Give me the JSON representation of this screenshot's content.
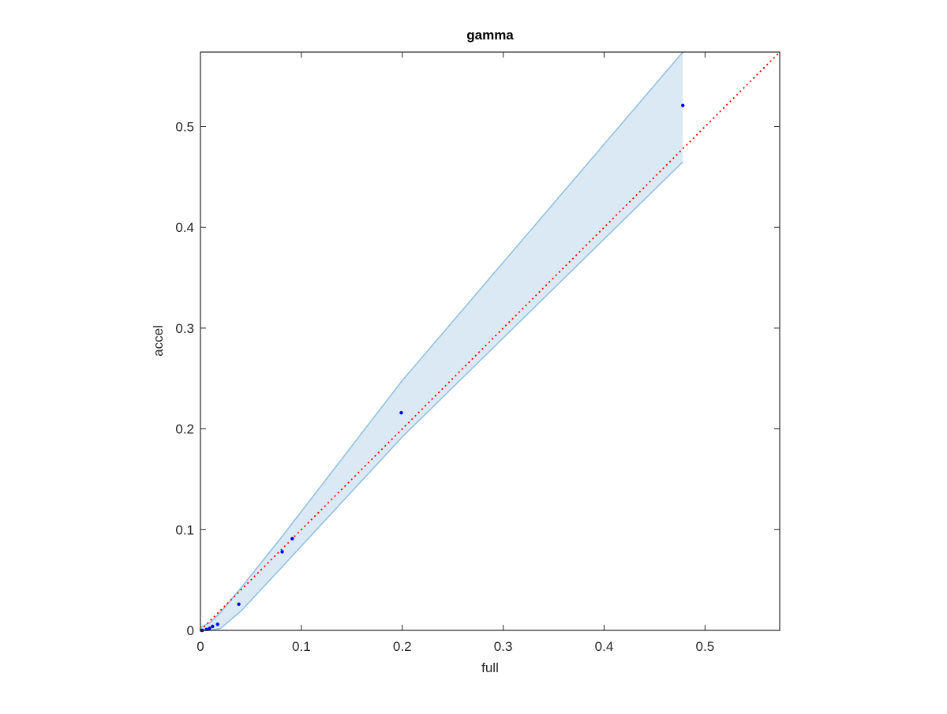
{
  "chart_data": {
    "type": "scatter",
    "title": "gamma",
    "xlabel": "full",
    "ylabel": "accel",
    "xlim": [
      0,
      0.574
    ],
    "ylim": [
      0,
      0.574
    ],
    "xticks": [
      0,
      0.1,
      0.2,
      0.3,
      0.4,
      0.5
    ],
    "yticks": [
      0,
      0.1,
      0.2,
      0.3,
      0.4,
      0.5
    ],
    "band": {
      "color": "#8fbfe0",
      "fill": "#dbe9f5",
      "x": [
        0,
        0.01,
        0.02,
        0.04,
        0.08,
        0.2,
        0.478
      ],
      "upper": [
        0.003,
        0.008,
        0.018,
        0.042,
        0.092,
        0.248,
        0.574
      ],
      "lower": [
        0,
        0,
        0.002,
        0.019,
        0.062,
        0.192,
        0.465
      ]
    },
    "reference_line": {
      "color": "#ff0000",
      "x": [
        0,
        0.574
      ],
      "y": [
        0,
        0.574
      ]
    },
    "points": {
      "color": "#0000ff",
      "x": [
        0.478,
        0.199,
        0.091,
        0.081,
        0.038,
        0.017,
        0.012,
        0.009,
        0.006,
        0.002,
        0.001
      ],
      "y": [
        0.521,
        0.216,
        0.091,
        0.078,
        0.026,
        0.006,
        0.004,
        0.002,
        0.001,
        0,
        0
      ]
    }
  }
}
